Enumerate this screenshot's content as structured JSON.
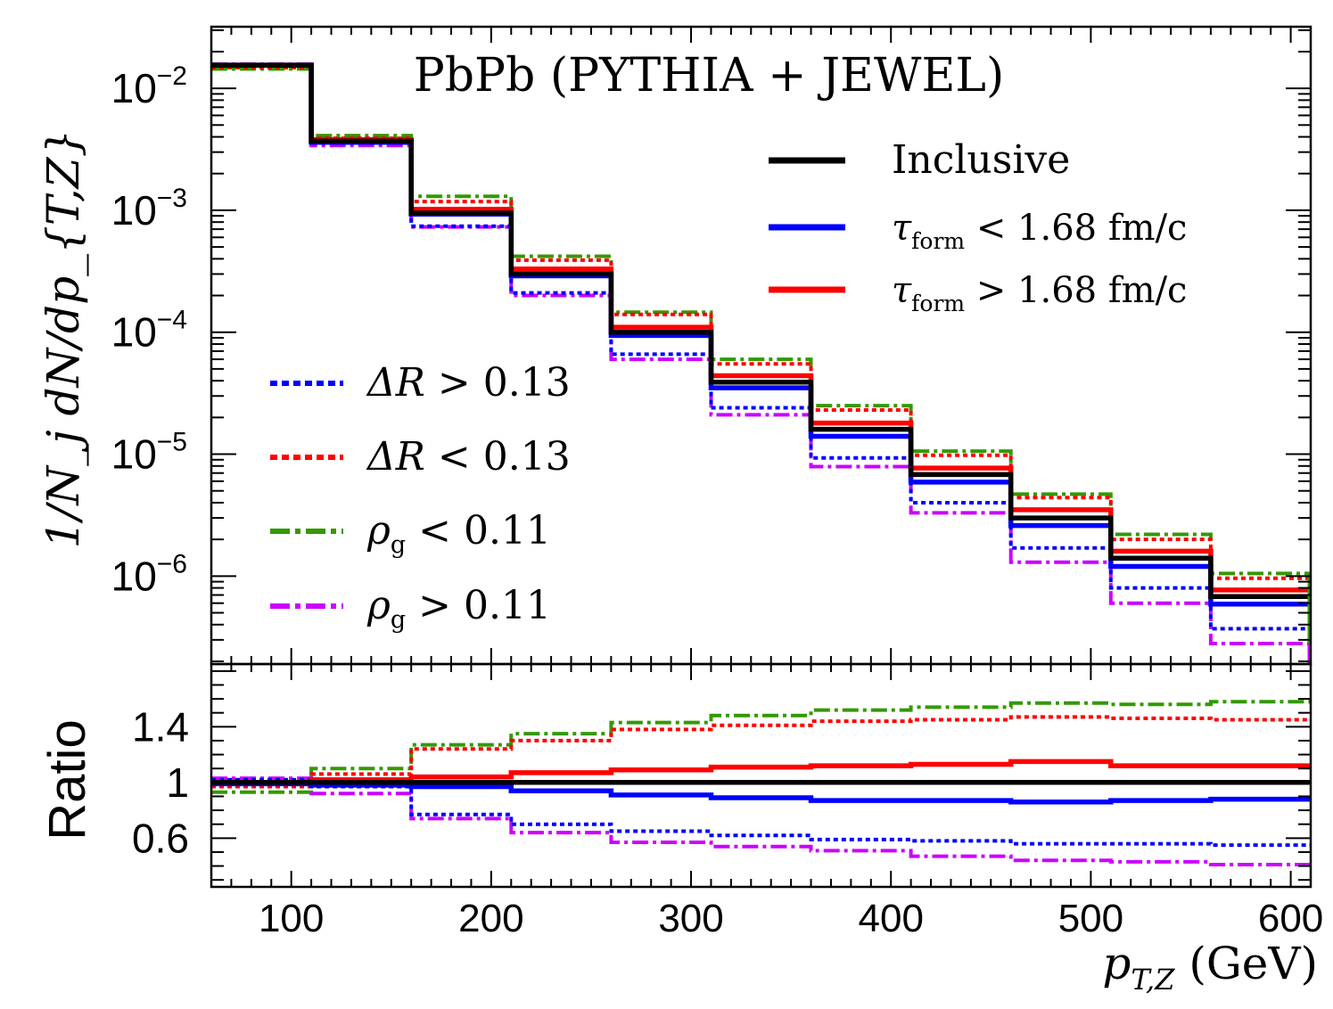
{
  "chart_data": {
    "type": "line",
    "title": "PbPb (PYTHIA + JEWEL)",
    "xlabel": "p_{T,Z} (GeV)",
    "xlabel_main": "p",
    "xlabel_sub": "T,Z",
    "xlabel_unit": " (GeV)",
    "ylabel": "1/N_j dN/dp_{T,Z}",
    "ylabel_ratio": "Ratio",
    "x_bin_edges": [
      60,
      110,
      160,
      210,
      260,
      310,
      360,
      410,
      460,
      510,
      560,
      610
    ],
    "xlim": [
      60,
      610
    ],
    "ylim": [
      1.9e-07,
      0.032
    ],
    "ratio_ylim": [
      0.25,
      1.85
    ],
    "y_scale": "log",
    "x_ticks": [
      100,
      200,
      300,
      400,
      500,
      600
    ],
    "x_tick_labels": [
      "100",
      "200",
      "300",
      "400",
      "500",
      "600"
    ],
    "y_ticks": [
      0.01,
      0.001,
      0.0001,
      1e-05,
      1e-06
    ],
    "y_tick_labels_base": [
      "10",
      "10",
      "10",
      "10",
      "10"
    ],
    "y_tick_labels_exp": [
      "−2",
      "−3",
      "−4",
      "−5",
      "−6"
    ],
    "ratio_ticks": [
      0.6,
      1,
      1.4
    ],
    "ratio_tick_labels": [
      "0.6",
      "1",
      "1.4"
    ],
    "legend_position": "right and lower-left",
    "series": [
      {
        "name": "Inclusive",
        "label_main": "Inclusive",
        "label_rest": "",
        "label_sub": "",
        "color": "#000000",
        "style": "solid",
        "values": [
          0.0155,
          0.0037,
          0.00095,
          0.0003,
          0.0001,
          3.9e-05,
          1.6e-05,
          6.8e-06,
          3e-06,
          1.4e-06,
          6.8e-07
        ],
        "ratio": [
          1,
          1,
          1,
          1,
          1,
          1,
          1,
          1,
          1,
          1,
          1
        ]
      },
      {
        "name": "τform < 1.68 fm/c",
        "label_main": "τ",
        "label_sub": "form",
        "label_rest": " < 1.68 fm/c",
        "color": "#0000ff",
        "style": "solid",
        "values": [
          0.0155,
          0.0036,
          0.00093,
          0.00029,
          9.4e-05,
          3.5e-05,
          1.4e-05,
          5.9e-06,
          2.6e-06,
          1.2e-06,
          5.9e-07
        ],
        "ratio": [
          0.99,
          0.98,
          0.97,
          0.94,
          0.91,
          0.89,
          0.87,
          0.87,
          0.86,
          0.87,
          0.88
        ]
      },
      {
        "name": "τform > 1.68 fm/c",
        "label_main": "τ",
        "label_sub": "form",
        "label_rest": " > 1.68 fm/c",
        "color": "#ff0000",
        "style": "solid",
        "values": [
          0.0155,
          0.0038,
          0.00102,
          0.00033,
          0.00011,
          4.4e-05,
          1.8e-05,
          7.7e-06,
          3.5e-06,
          1.6e-06,
          7.7e-07
        ],
        "ratio": [
          1.0,
          1.02,
          1.04,
          1.07,
          1.09,
          1.11,
          1.12,
          1.13,
          1.15,
          1.12,
          1.12
        ]
      },
      {
        "name": "ΔR > 0.13",
        "label_main": "ΔR",
        "label_sub": "",
        "label_rest": " > 0.13",
        "color": "#0000ff",
        "style": "dotted",
        "values": [
          0.0155,
          0.0036,
          0.00074,
          0.00021,
          6.6e-05,
          2.4e-05,
          9.3e-06,
          4e-06,
          1.7e-06,
          8e-07,
          3.7e-07
        ],
        "ratio": [
          1.02,
          0.97,
          0.77,
          0.7,
          0.65,
          0.62,
          0.59,
          0.58,
          0.56,
          0.56,
          0.55
        ]
      },
      {
        "name": "ΔR < 0.13",
        "label_main": "ΔR",
        "label_sub": "",
        "label_rest": " < 0.13",
        "color": "#ff0000",
        "style": "dotted",
        "values": [
          0.0148,
          0.0039,
          0.00118,
          0.00039,
          0.00014,
          5.5e-05,
          2.3e-05,
          9.8e-06,
          4.4e-06,
          2e-06,
          9.6e-07
        ],
        "ratio": [
          0.97,
          1.06,
          1.24,
          1.3,
          1.38,
          1.41,
          1.44,
          1.45,
          1.47,
          1.46,
          1.45
        ]
      },
      {
        "name": "ρg < 0.11",
        "label_main": "ρ",
        "label_sub": "g",
        "label_rest": " < 0.11",
        "color": "#339900",
        "style": "dashdot",
        "values": [
          0.0144,
          0.0041,
          0.0013,
          0.00042,
          0.000146,
          6e-05,
          2.5e-05,
          1.06e-05,
          4.7e-06,
          2.2e-06,
          1.05e-06
        ],
        "ratio": [
          0.93,
          1.1,
          1.27,
          1.35,
          1.43,
          1.48,
          1.52,
          1.54,
          1.57,
          1.56,
          1.58
        ]
      },
      {
        "name": "ρg > 0.11",
        "label_main": "ρ",
        "label_sub": "g",
        "label_rest": " > 0.11",
        "color": "#cc00ff",
        "style": "dashdot",
        "values": [
          0.0158,
          0.0034,
          0.00073,
          0.0002,
          6e-05,
          2.1e-05,
          7.9e-06,
          3.3e-06,
          1.3e-06,
          6e-07,
          2.8e-07
        ],
        "ratio": [
          1.03,
          0.92,
          0.74,
          0.64,
          0.57,
          0.54,
          0.51,
          0.47,
          0.44,
          0.43,
          0.41
        ]
      }
    ]
  }
}
